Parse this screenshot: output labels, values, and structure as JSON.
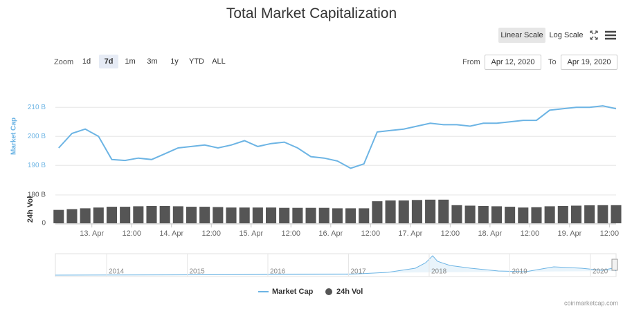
{
  "title": "Total Market Capitalization",
  "controls": {
    "scale": [
      "Linear Scale",
      "Log Scale"
    ],
    "zoom_label": "Zoom",
    "zoom": [
      "1d",
      "7d",
      "1m",
      "3m",
      "1y",
      "YTD",
      "ALL"
    ],
    "from_label": "From",
    "from": "Apr 12, 2020",
    "to_label": "To",
    "to": "Apr 19, 2020"
  },
  "chart_data": {
    "type": "line",
    "x": [
      "2020-04-12T14:00",
      "2020-04-12T18:00",
      "2020-04-12T22:00",
      "2020-04-13T02:00",
      "2020-04-13T06:00",
      "2020-04-13T10:00",
      "2020-04-13T14:00",
      "2020-04-13T18:00",
      "2020-04-13T22:00",
      "2020-04-14T02:00",
      "2020-04-14T06:00",
      "2020-04-14T10:00",
      "2020-04-14T14:00",
      "2020-04-14T18:00",
      "2020-04-14T22:00",
      "2020-04-15T02:00",
      "2020-04-15T06:00",
      "2020-04-15T10:00",
      "2020-04-15T14:00",
      "2020-04-15T18:00",
      "2020-04-15T22:00",
      "2020-04-16T02:00",
      "2020-04-16T06:00",
      "2020-04-16T10:00",
      "2020-04-16T14:00",
      "2020-04-16T18:00",
      "2020-04-16T22:00",
      "2020-04-17T02:00",
      "2020-04-17T06:00",
      "2020-04-17T10:00",
      "2020-04-17T14:00",
      "2020-04-17T18:00",
      "2020-04-17T22:00",
      "2020-04-18T02:00",
      "2020-04-18T06:00",
      "2020-04-18T10:00",
      "2020-04-18T14:00",
      "2020-04-18T18:00",
      "2020-04-18T22:00",
      "2020-04-19T02:00",
      "2020-04-19T06:00",
      "2020-04-19T10:00",
      "2020-04-19T14:00"
    ],
    "xlim": [
      "2020-04-12T13:00",
      "2020-04-19T14:00"
    ],
    "xticks": [
      {
        "value": "2020-04-13T00:00",
        "label": "13. Apr"
      },
      {
        "value": "2020-04-13T12:00",
        "label": "12:00"
      },
      {
        "value": "2020-04-14T00:00",
        "label": "14. Apr"
      },
      {
        "value": "2020-04-14T12:00",
        "label": "12:00"
      },
      {
        "value": "2020-04-15T00:00",
        "label": "15. Apr"
      },
      {
        "value": "2020-04-15T12:00",
        "label": "12:00"
      },
      {
        "value": "2020-04-16T00:00",
        "label": "16. Apr"
      },
      {
        "value": "2020-04-16T12:00",
        "label": "12:00"
      },
      {
        "value": "2020-04-17T00:00",
        "label": "17. Apr"
      },
      {
        "value": "2020-04-17T12:00",
        "label": "12:00"
      },
      {
        "value": "2020-04-18T00:00",
        "label": "18. Apr"
      },
      {
        "value": "2020-04-18T12:00",
        "label": "12:00"
      },
      {
        "value": "2020-04-19T00:00",
        "label": "19. Apr"
      },
      {
        "value": "2020-04-19T12:00",
        "label": "12:00"
      }
    ],
    "ylabel": "Market Cap",
    "ylim": [
      186,
      216
    ],
    "yticks": [
      {
        "value": 190,
        "label": "190 B"
      },
      {
        "value": 200,
        "label": "200 B"
      },
      {
        "value": 210,
        "label": "210 B"
      }
    ],
    "y2label": "24h Vol",
    "y2lim": [
      0,
      180
    ],
    "y2ticks": [
      0,
      {
        "value": 180,
        "label": "180 B"
      }
    ],
    "grid": true,
    "series": [
      {
        "name": "Market Cap",
        "color": "#6cb4e4",
        "values": [
          196,
          201,
          202.5,
          200,
          192,
          191.7,
          192.5,
          192,
          194,
          196,
          196.5,
          197,
          196,
          197,
          198.5,
          196.5,
          197.5,
          198,
          196,
          193,
          192.5,
          191.5,
          189,
          190.5,
          201.5,
          202,
          202.5,
          203.5,
          204.5,
          204,
          204,
          203.5,
          204.5,
          204.5,
          205,
          205.5,
          205.5,
          209,
          209.5,
          210,
          210,
          210.5,
          209.5
        ]
      },
      {
        "name": "24h Vol",
        "color": "#555555",
        "axis": "y2",
        "values": [
          85,
          90,
          95,
          100,
          105,
          105,
          108,
          110,
          110,
          108,
          105,
          105,
          103,
          100,
          100,
          100,
          100,
          98,
          98,
          98,
          98,
          95,
          95,
          95,
          140,
          145,
          145,
          148,
          150,
          150,
          115,
          112,
          110,
          108,
          105,
          100,
          102,
          108,
          110,
          112,
          114,
          115,
          115
        ]
      }
    ]
  },
  "navigator": {
    "labels": [
      "2014",
      "2015",
      "2016",
      "2017",
      "2018",
      "2019",
      "2020"
    ]
  },
  "credit": "coinmarketcap.com"
}
